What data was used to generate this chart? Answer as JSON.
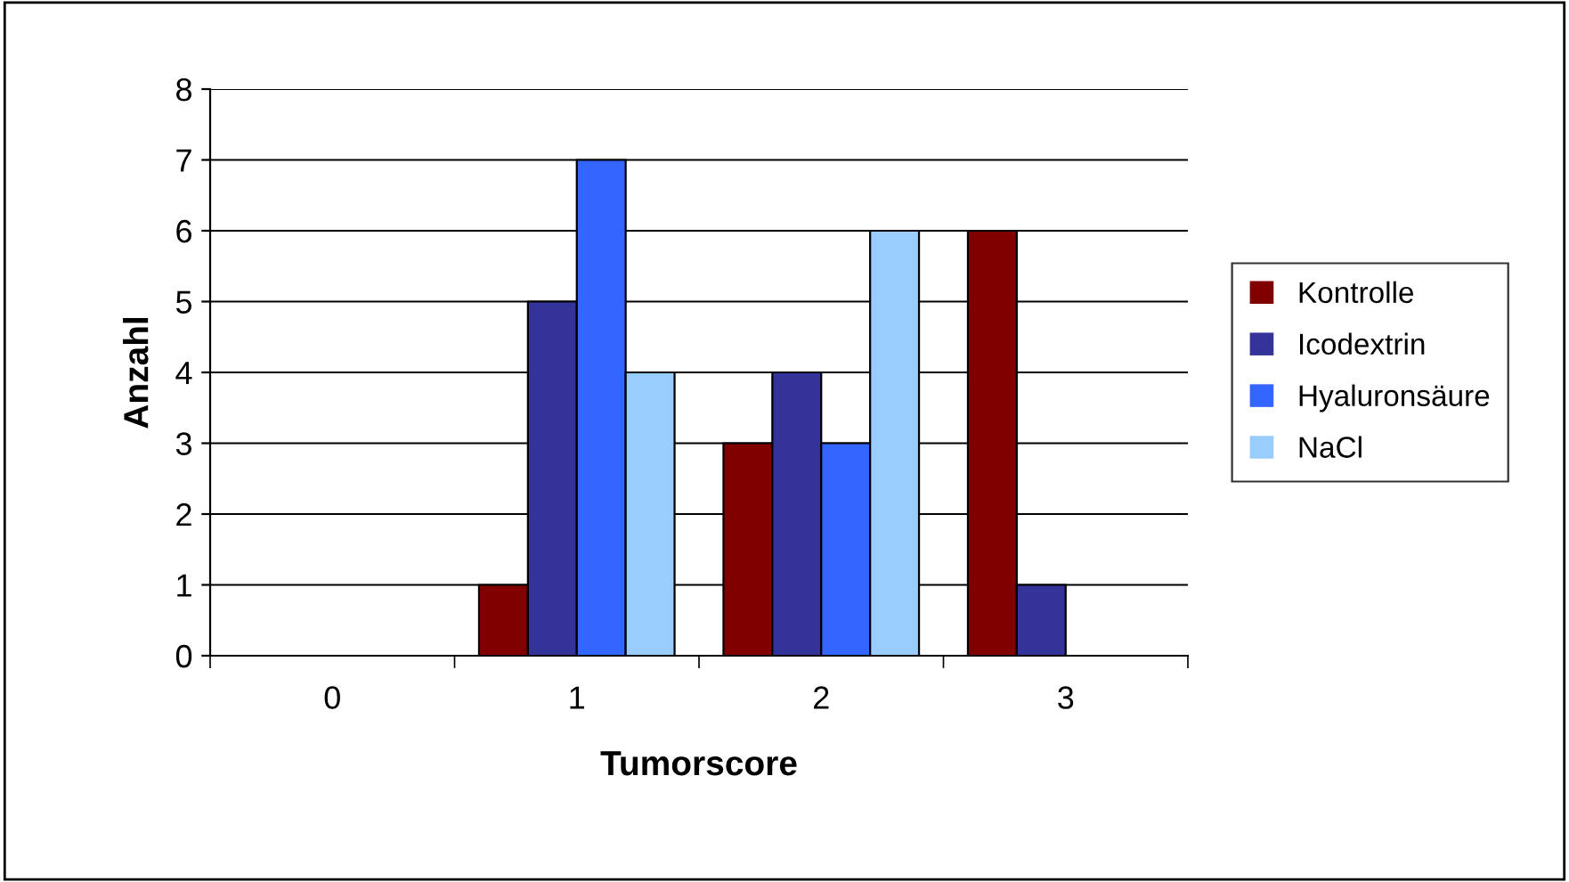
{
  "chart_data": {
    "type": "bar",
    "xlabel": "Tumorscore",
    "ylabel": "Anzahl",
    "categories": [
      "0",
      "1",
      "2",
      "3"
    ],
    "series": [
      {
        "name": "Kontrolle",
        "color": "#800000",
        "values": [
          0,
          1,
          3,
          6
        ]
      },
      {
        "name": "Icodextrin",
        "color": "#333399",
        "values": [
          0,
          5,
          4,
          1
        ]
      },
      {
        "name": "Hyaluronsäure",
        "color": "#3366ff",
        "values": [
          0,
          7,
          3,
          0
        ]
      },
      {
        "name": "NaCl",
        "color": "#99ccff",
        "values": [
          0,
          4,
          6,
          0
        ]
      }
    ],
    "ylim": [
      0,
      8
    ],
    "yticks": [
      0,
      1,
      2,
      3,
      4,
      5,
      6,
      7,
      8
    ],
    "grid": "y",
    "legend": "right"
  }
}
